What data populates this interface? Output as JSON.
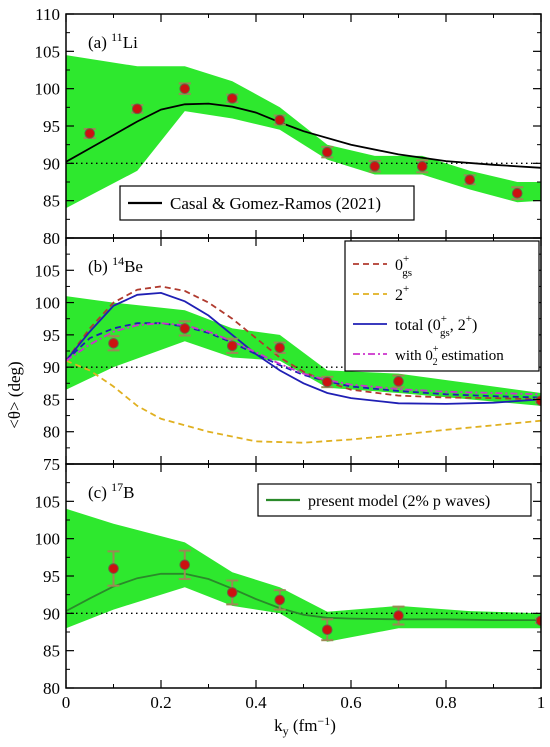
{
  "figure": {
    "xlabel_main": "k",
    "xlabel_sub": "y",
    "xlabel_unit": " (fm",
    "xlabel_exp": "−1",
    "xlabel_close": ")",
    "ylabel": "<θ> (deg)",
    "colors": {
      "band": "#2ee82e",
      "errorbar": "#9a8a55",
      "point_fill": "#cc1111",
      "point_edge": "#666644",
      "reference": "#000000",
      "gs": "#b03a2e",
      "two_plus": "#e0b020",
      "total": "#1f1fb4",
      "zero2": "#cc33cc",
      "present": "#2a8a2a"
    }
  },
  "chart_data": [
    {
      "type": "line",
      "panel": "a",
      "label_prefix": "(a) ",
      "label_mass": "11",
      "label_element": "Li",
      "xlim": [
        0,
        1
      ],
      "ylim": [
        80,
        110
      ],
      "yticks": [
        80,
        85,
        90,
        95,
        100,
        105,
        110
      ],
      "xticks": [
        0,
        0.2,
        0.4,
        0.6,
        0.8,
        1
      ],
      "reference_line": 90,
      "band": {
        "x": [
          0,
          0.15,
          0.25,
          0.35,
          0.45,
          0.55,
          0.65,
          0.75,
          0.85,
          0.95,
          1.0
        ],
        "upper": [
          104.5,
          103,
          103,
          101,
          97.5,
          92.5,
          91,
          91,
          89,
          87.5,
          87.5
        ],
        "lower": [
          84,
          89,
          97,
          96,
          94.5,
          90.5,
          88.5,
          88.5,
          86.5,
          84.8,
          85
        ]
      },
      "points": {
        "x": [
          0.05,
          0.15,
          0.25,
          0.35,
          0.45,
          0.55,
          0.65,
          0.75,
          0.85,
          0.95
        ],
        "y": [
          94,
          97.3,
          100,
          98.7,
          95.8,
          91.5,
          89.6,
          89.6,
          87.8,
          86
        ],
        "err": [
          0.6,
          0.5,
          0.7,
          0.5,
          0.6,
          0.7,
          0.7,
          0.8,
          0.6,
          0.8
        ]
      },
      "series": [
        {
          "name": "Casal & Gomez-Ramos (2021)",
          "color": "#000000",
          "dash": "solid",
          "x": [
            0,
            0.05,
            0.1,
            0.15,
            0.2,
            0.25,
            0.3,
            0.35,
            0.4,
            0.45,
            0.5,
            0.6,
            0.7,
            0.8,
            0.9,
            1.0
          ],
          "y": [
            90.2,
            92,
            93.8,
            95.6,
            97.2,
            97.9,
            98,
            97.6,
            96.8,
            95.5,
            94.3,
            92.5,
            91.2,
            90.3,
            89.8,
            89.4
          ]
        }
      ],
      "legend_position": "bottom-center"
    },
    {
      "type": "line",
      "panel": "b",
      "label_prefix": "(b) ",
      "label_mass": "14",
      "label_element": "Be",
      "xlim": [
        0,
        1
      ],
      "ylim": [
        75,
        110
      ],
      "yticks": [
        75,
        80,
        85,
        90,
        95,
        100,
        105
      ],
      "xticks": [
        0,
        0.2,
        0.4,
        0.6,
        0.8,
        1
      ],
      "reference_line": 90,
      "band": {
        "x": [
          0,
          0.1,
          0.25,
          0.35,
          0.45,
          0.55,
          0.7,
          0.85,
          1.0
        ],
        "upper": [
          101,
          100,
          98.8,
          96,
          95,
          89.5,
          89,
          87.5,
          86
        ],
        "lower": [
          86.5,
          90,
          94,
          91.5,
          91,
          86.8,
          86,
          85,
          84
        ]
      },
      "points": {
        "x": [
          0.1,
          0.25,
          0.35,
          0.45,
          0.55,
          0.7,
          1.0
        ],
        "y": [
          93.7,
          96,
          93.3,
          93,
          87.7,
          87.8,
          84.8
        ],
        "err": [
          1.1,
          1.1,
          1.1,
          0.8,
          0.8,
          0.9,
          0.3
        ]
      },
      "series": [
        {
          "name": "0gs+",
          "name_base": "0",
          "name_sup": "+",
          "name_sub": "gs",
          "color": "#b03a2e",
          "dash": "6,4",
          "x": [
            0,
            0.05,
            0.1,
            0.15,
            0.2,
            0.25,
            0.3,
            0.35,
            0.4,
            0.45,
            0.5,
            0.55,
            0.6,
            0.7,
            0.8,
            0.9,
            1.0
          ],
          "y": [
            91,
            96,
            100,
            102,
            102.5,
            101.8,
            100,
            97.5,
            94.5,
            91.5,
            89.3,
            87.7,
            86.5,
            85.6,
            85.3,
            85.2,
            85
          ],
          "legend_position": "top-right"
        },
        {
          "name": "2+",
          "name_base": "2",
          "name_sup": "+",
          "name_sub": "",
          "color": "#e0b020",
          "dash": "6,4",
          "x": [
            0,
            0.05,
            0.1,
            0.15,
            0.2,
            0.3,
            0.4,
            0.5,
            0.6,
            0.7,
            0.8,
            0.9,
            1.0
          ],
          "y": [
            91,
            89.5,
            87,
            84,
            82,
            80,
            78.5,
            78.3,
            78.8,
            79.5,
            80.3,
            81,
            81.7
          ]
        },
        {
          "name": "total (0gs+, 2+)",
          "color": "#1f1fb4",
          "dash": "solid",
          "x": [
            0,
            0.05,
            0.1,
            0.15,
            0.2,
            0.25,
            0.3,
            0.35,
            0.4,
            0.45,
            0.5,
            0.55,
            0.6,
            0.7,
            0.8,
            0.9,
            1.0
          ],
          "y": [
            91,
            95.5,
            99.5,
            101.2,
            101.5,
            100.2,
            98,
            95,
            92,
            89.5,
            87.5,
            86,
            85.2,
            84.4,
            84.3,
            84.5,
            85
          ]
        },
        {
          "name": "with 02+ estimation",
          "color": "#cc33cc",
          "dash": "7,3,2,3",
          "x": [
            0,
            0.05,
            0.1,
            0.15,
            0.2,
            0.25,
            0.3,
            0.35,
            0.4,
            0.45,
            0.5,
            0.55,
            0.6,
            0.7,
            0.8,
            0.9,
            1.0
          ],
          "y": [
            91,
            93.5,
            95.5,
            96.5,
            96.8,
            96.5,
            95.5,
            94,
            92.3,
            90.5,
            89,
            88,
            87.3,
            86.6,
            86.2,
            86,
            85.8
          ]
        }
      ],
      "extra_dashed": {
        "color": "#1f1fb4",
        "dash": "6,4",
        "x": [
          0,
          0.05,
          0.1,
          0.15,
          0.2,
          0.25,
          0.3,
          0.35,
          0.4,
          0.45,
          0.5,
          0.55,
          0.6,
          0.7,
          0.8,
          0.9,
          1.0
        ],
        "y": [
          91,
          94.5,
          96,
          96.8,
          96.8,
          96.3,
          95.3,
          93.8,
          92,
          90.3,
          88.8,
          87.8,
          87,
          86.3,
          85.8,
          85.5,
          85.3
        ]
      },
      "legend": {
        "gs_label_base": "0",
        "gs_label_sup": "+",
        "gs_label_sub": "gs",
        "two_label_base": "2",
        "two_label_sup": "+",
        "total_label_a": "total (0",
        "total_label_sup": "+",
        "total_label_sub": "gs",
        "total_label_b": ", 2",
        "total_label_sup2": "+",
        "total_label_c": ")",
        "zero2_label_a": "with 0",
        "zero2_label_sup": "+",
        "zero2_label_sub": "2",
        "zero2_label_b": " estimation"
      }
    },
    {
      "type": "line",
      "panel": "c",
      "label_prefix": "(c) ",
      "label_mass": "17",
      "label_element": "B",
      "xlim": [
        0,
        1
      ],
      "ylim": [
        80,
        110
      ],
      "yticks": [
        80,
        85,
        90,
        95,
        100,
        105
      ],
      "xticks": [
        0,
        0.2,
        0.4,
        0.6,
        0.8,
        1
      ],
      "xticklabels": [
        "0",
        "0.2",
        "0.4",
        "0.6",
        "0.8",
        "1"
      ],
      "reference_line": 90,
      "band": {
        "x": [
          0,
          0.1,
          0.25,
          0.35,
          0.45,
          0.55,
          0.7,
          0.85,
          1.0
        ],
        "upper": [
          104,
          102,
          99.5,
          95.5,
          93.5,
          90.2,
          91,
          90.3,
          90
        ],
        "lower": [
          88,
          90.5,
          93.5,
          91,
          90,
          86.2,
          88,
          88,
          88
        ]
      },
      "points": {
        "x": [
          0.1,
          0.25,
          0.35,
          0.45,
          0.55,
          0.7,
          1.0
        ],
        "y": [
          96,
          96.5,
          92.8,
          91.8,
          87.8,
          89.7,
          89
        ],
        "err": [
          2.3,
          1.9,
          1.6,
          1.3,
          1.4,
          1.2,
          0.3
        ]
      },
      "series": [
        {
          "name": "present model (2% p waves)",
          "color": "#2a8a2a",
          "dash": "solid",
          "x": [
            0,
            0.05,
            0.1,
            0.15,
            0.2,
            0.25,
            0.3,
            0.35,
            0.4,
            0.45,
            0.5,
            0.55,
            0.6,
            0.7,
            0.8,
            0.9,
            1.0
          ],
          "y": [
            90.3,
            92,
            93.6,
            94.7,
            95.3,
            95.3,
            94.6,
            93.3,
            91.9,
            90.7,
            89.8,
            89.4,
            89.3,
            89.2,
            89.2,
            89.1,
            89.1
          ]
        }
      ],
      "legend_position": "top-right"
    }
  ]
}
